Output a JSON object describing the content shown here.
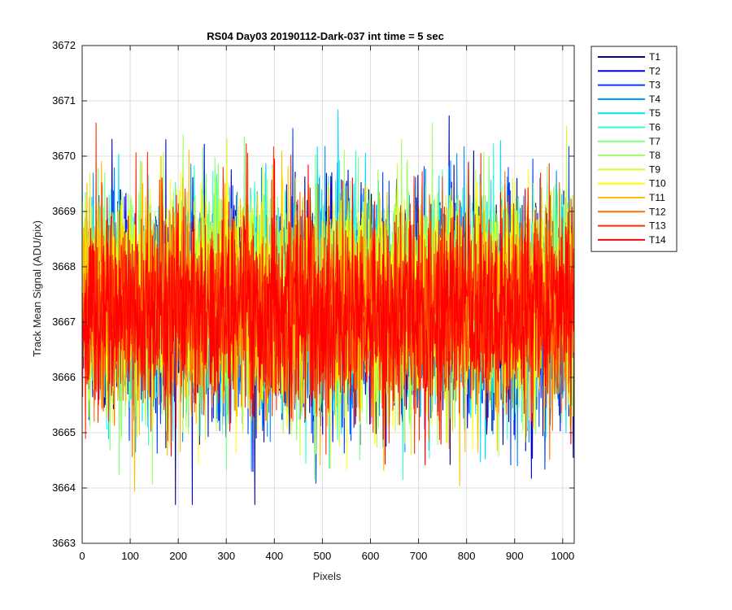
{
  "chart_data": {
    "type": "line",
    "title": "RS04 Day03 20190112-Dark-037 int time = 5 sec",
    "xlabel": "Pixels",
    "ylabel": "Track Mean Signal (ADU/pix)",
    "xlim": [
      0,
      1024
    ],
    "ylim": [
      3663,
      3672
    ],
    "xticks": [
      0,
      100,
      200,
      300,
      400,
      500,
      600,
      700,
      800,
      900,
      1000
    ],
    "yticks": [
      3663,
      3664,
      3665,
      3666,
      3667,
      3668,
      3669,
      3670,
      3671,
      3672
    ],
    "grid": true,
    "legend_position": "outside-top-right",
    "n_points": 1024,
    "series": [
      {
        "name": "T1",
        "color": "#00008f",
        "mean": 3667.3,
        "std": 1.0
      },
      {
        "name": "T2",
        "color": "#0000e0",
        "mean": 3667.3,
        "std": 1.0
      },
      {
        "name": "T3",
        "color": "#0040ff",
        "mean": 3667.3,
        "std": 1.0
      },
      {
        "name": "T4",
        "color": "#0090ff",
        "mean": 3667.3,
        "std": 1.0
      },
      {
        "name": "T5",
        "color": "#00dfff",
        "mean": 3667.4,
        "std": 0.95
      },
      {
        "name": "T6",
        "color": "#30ffcf",
        "mean": 3667.4,
        "std": 0.95
      },
      {
        "name": "T7",
        "color": "#80ff80",
        "mean": 3667.5,
        "std": 0.95
      },
      {
        "name": "T8",
        "color": "#a0ff60",
        "mean": 3667.5,
        "std": 0.95
      },
      {
        "name": "T9",
        "color": "#cfff30",
        "mean": 3667.4,
        "std": 0.95
      },
      {
        "name": "T10",
        "color": "#ffff00",
        "mean": 3667.4,
        "std": 0.95
      },
      {
        "name": "T11",
        "color": "#ffbf00",
        "mean": 3667.3,
        "std": 0.95
      },
      {
        "name": "T12",
        "color": "#ff7000",
        "mean": 3667.2,
        "std": 0.9
      },
      {
        "name": "T13",
        "color": "#ff3000",
        "mean": 3667.2,
        "std": 0.9
      },
      {
        "name": "T14",
        "color": "#ff0000",
        "mean": 3667.2,
        "std": 0.85
      }
    ]
  }
}
